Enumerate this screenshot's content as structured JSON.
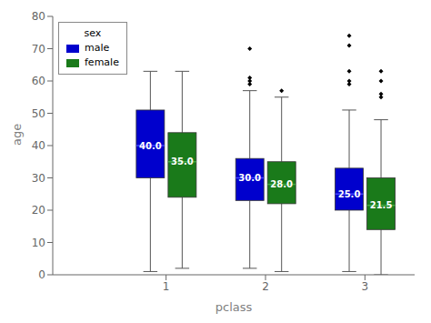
{
  "chart_data": {
    "type": "box",
    "xlabel": "pclass",
    "ylabel": "age",
    "categories": [
      "1",
      "2",
      "3"
    ],
    "ylim": [
      0,
      80
    ],
    "yticks": [
      0,
      10,
      20,
      30,
      40,
      50,
      60,
      70,
      80
    ],
    "grid": false,
    "legend": "upper left",
    "legend_title": "sex",
    "data_labels": true,
    "series": [
      {
        "name": "male",
        "color": "#0000cd",
        "median_color": "#4444ff",
        "values": [
          {
            "q1": 30,
            "median": 40,
            "q3": 51,
            "whislo": 1,
            "whishi": 63,
            "fliers": []
          },
          {
            "q1": 23,
            "median": 30,
            "q3": 36,
            "whislo": 2,
            "whishi": 57,
            "fliers": [
              59,
              60,
              61,
              70
            ]
          },
          {
            "q1": 20,
            "median": 25,
            "q3": 33,
            "whislo": 1,
            "whishi": 51,
            "fliers": [
              59,
              60,
              63,
              71,
              74
            ]
          }
        ],
        "value_labels": [
          "40.0",
          "30.0",
          "25.0"
        ]
      },
      {
        "name": "female",
        "color": "#1a7a1a",
        "median_color": "#44aa44",
        "values": [
          {
            "q1": 24,
            "median": 35,
            "q3": 44,
            "whislo": 2,
            "whishi": 63,
            "fliers": []
          },
          {
            "q1": 22,
            "median": 28,
            "q3": 35,
            "whislo": 1,
            "whishi": 55,
            "fliers": [
              57
            ]
          },
          {
            "q1": 14,
            "median": 21.5,
            "q3": 30,
            "whislo": 0,
            "whishi": 48,
            "fliers": [
              55,
              56,
              60,
              63
            ]
          }
        ],
        "value_labels": [
          "35.0",
          "28.0",
          "21.5"
        ]
      }
    ]
  }
}
